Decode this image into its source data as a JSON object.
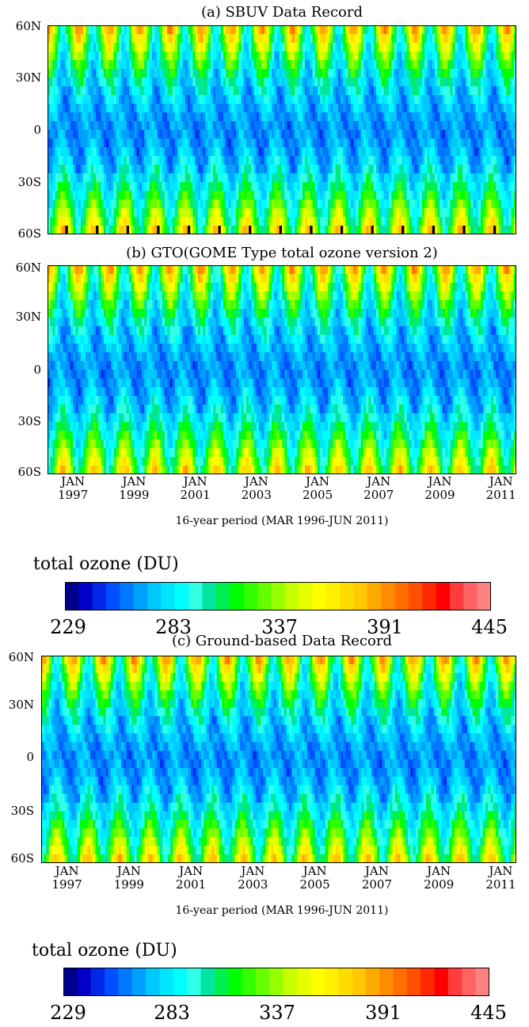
{
  "chart_data": [
    {
      "type": "heatmap",
      "title": "(a) SBUV Data Record",
      "y_ticks": [
        "60N",
        "30N",
        "0",
        "30S",
        "60S"
      ],
      "ylim": [
        -60,
        60
      ],
      "time_range": [
        "1996-03",
        "2011-06"
      ],
      "x_ticks": [],
      "xlabel": "",
      "missing_data_color": "#000000",
      "zlim": [
        229,
        445
      ]
    },
    {
      "type": "heatmap",
      "title": "(b) GTO(GOME Type total ozone version 2)",
      "y_ticks": [
        "60N",
        "30N",
        "0",
        "30S",
        "60S"
      ],
      "ylim": [
        -60,
        60
      ],
      "time_range": [
        "1996-03",
        "2011-06"
      ],
      "x_ticks": [
        {
          "month": "JAN",
          "year": "1997"
        },
        {
          "month": "JAN",
          "year": "1999"
        },
        {
          "month": "JAN",
          "year": "2001"
        },
        {
          "month": "JAN",
          "year": "2003"
        },
        {
          "month": "JAN",
          "year": "2005"
        },
        {
          "month": "JAN",
          "year": "2007"
        },
        {
          "month": "JAN",
          "year": "2009"
        },
        {
          "month": "JAN",
          "year": "2011"
        }
      ],
      "xlabel": "16-year period (MAR 1996-JUN 2011)",
      "zlim": [
        229,
        445
      ]
    },
    {
      "type": "heatmap",
      "title": "(c) Ground-based Data Record",
      "y_ticks": [
        "60N",
        "30N",
        "0",
        "30S",
        "60S"
      ],
      "ylim": [
        -60,
        60
      ],
      "time_range": [
        "1996-03",
        "2011-06"
      ],
      "x_ticks": [
        {
          "month": "JAN",
          "year": "1997"
        },
        {
          "month": "JAN",
          "year": "1999"
        },
        {
          "month": "JAN",
          "year": "2001"
        },
        {
          "month": "JAN",
          "year": "2003"
        },
        {
          "month": "JAN",
          "year": "2005"
        },
        {
          "month": "JAN",
          "year": "2007"
        },
        {
          "month": "JAN",
          "year": "2009"
        },
        {
          "month": "JAN",
          "year": "2011"
        }
      ],
      "xlabel": "16-year period (MAR 1996-JUN 2011)",
      "zlim": [
        229,
        445
      ]
    }
  ],
  "colorbar": {
    "title": "total ozone (DU)",
    "ticks": [
      "229",
      "283",
      "337",
      "391",
      "445"
    ],
    "range": [
      229,
      445
    ],
    "colors": [
      "#00008c",
      "#0000c8",
      "#0028e6",
      "#0050ff",
      "#0078ff",
      "#00a0ff",
      "#00c8ff",
      "#00e6ff",
      "#00ffff",
      "#32ffe6",
      "#00e6a0",
      "#00f050",
      "#00ff00",
      "#32ff00",
      "#64ff00",
      "#96ff00",
      "#c8ff00",
      "#e6ff00",
      "#ffff00",
      "#fff000",
      "#ffdc00",
      "#ffc800",
      "#ffaa00",
      "#ff8c00",
      "#ff6e00",
      "#ff5000",
      "#ff2800",
      "#ff0000",
      "#ff3c3c",
      "#ff6464",
      "#ff8282"
    ]
  }
}
